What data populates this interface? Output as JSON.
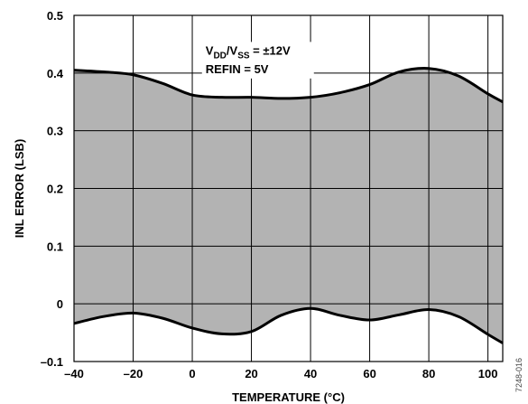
{
  "chart_data": {
    "type": "area",
    "xlabel": "TEMPERATURE (°C)",
    "ylabel": "INL ERROR (LSB)",
    "xlim": [
      -40,
      105
    ],
    "ylim": [
      -0.1,
      0.5
    ],
    "grid": true,
    "x_ticks": [
      -40,
      -20,
      0,
      20,
      40,
      60,
      80,
      100
    ],
    "x_tick_labels": [
      "–40",
      "–20",
      "0",
      "20",
      "40",
      "60",
      "80",
      "100"
    ],
    "y_ticks": [
      -0.1,
      0,
      0.1,
      0.2,
      0.3,
      0.4,
      0.5
    ],
    "y_tick_labels": [
      "–0.1",
      "0",
      "0.1",
      "0.2",
      "0.3",
      "0.4",
      "0.5"
    ],
    "series": [
      {
        "x": [
          -40,
          -30,
          -20,
          -10,
          0,
          10,
          20,
          30,
          40,
          50,
          60,
          70,
          80,
          90,
          100,
          105
        ],
        "values": [
          0.405,
          0.402,
          0.397,
          0.382,
          0.362,
          0.358,
          0.358,
          0.356,
          0.358,
          0.366,
          0.38,
          0.402,
          0.408,
          0.395,
          0.364,
          0.35
        ]
      },
      {
        "x": [
          -40,
          -30,
          -20,
          -10,
          0,
          10,
          20,
          30,
          40,
          50,
          60,
          70,
          80,
          90,
          100,
          105
        ],
        "values": [
          -0.034,
          -0.022,
          -0.016,
          -0.025,
          -0.042,
          -0.052,
          -0.048,
          -0.02,
          -0.008,
          -0.02,
          -0.028,
          -0.019,
          -0.01,
          -0.022,
          -0.053,
          -0.068
        ]
      }
    ],
    "fill_between": true,
    "colors": {
      "fill": "#b3b3b3",
      "line": "#000000",
      "grid": "#000000"
    },
    "annotations": [
      {
        "line1_main": "V",
        "line1_sub1": "DD",
        "line1_mid": "/V",
        "line1_sub2": "SS",
        "line1_end": " = ±12V",
        "line2": "REFIN = 5V"
      }
    ],
    "figure_id": "7248-016"
  }
}
